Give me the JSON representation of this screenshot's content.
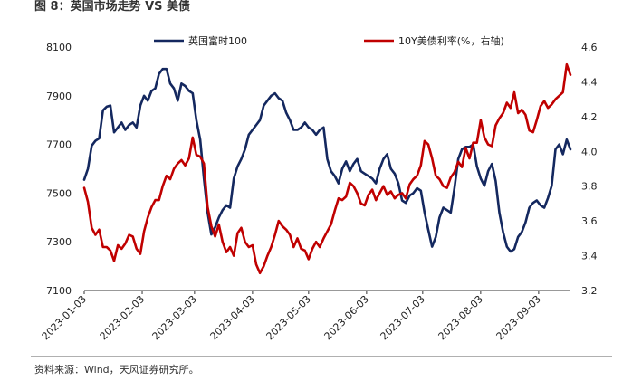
{
  "header": {
    "title": "图 8：英国市场走势 VS 美债"
  },
  "footer": {
    "source": "资料来源：Wind，天风证券研究所。"
  },
  "colors": {
    "ftse": "#14285f",
    "yield": "#c00000"
  },
  "chart_data": {
    "type": "line",
    "title": "",
    "xlabel": "",
    "ylabel": "",
    "x_tick_labels": [
      "2023-01-03",
      "2023-02-03",
      "2023-03-03",
      "2023-04-03",
      "2023-05-03",
      "2023-06-03",
      "2023-07-03",
      "2023-08-03",
      "2023-09-03"
    ],
    "x_range": [
      "2023-01-03",
      "2023-09-20"
    ],
    "legend_position": "top",
    "y_left": {
      "ticks": [
        7100,
        7300,
        7500,
        7700,
        7900,
        8100
      ],
      "range": [
        7100,
        8100
      ]
    },
    "y_right": {
      "ticks": [
        3.2,
        3.4,
        3.6,
        3.8,
        4.0,
        4.2,
        4.4,
        4.6
      ],
      "range": [
        3.2,
        4.6
      ]
    },
    "series": [
      {
        "name": "英国富时100",
        "axis": "left",
        "points": [
          [
            "2023-01-03",
            7555
          ],
          [
            "2023-01-05",
            7600
          ],
          [
            "2023-01-07",
            7695
          ],
          [
            "2023-01-09",
            7715
          ],
          [
            "2023-01-11",
            7725
          ],
          [
            "2023-01-13",
            7840
          ],
          [
            "2023-01-15",
            7855
          ],
          [
            "2023-01-17",
            7860
          ],
          [
            "2023-01-19",
            7750
          ],
          [
            "2023-01-21",
            7770
          ],
          [
            "2023-01-23",
            7790
          ],
          [
            "2023-01-25",
            7760
          ],
          [
            "2023-01-27",
            7780
          ],
          [
            "2023-01-29",
            7790
          ],
          [
            "2023-01-31",
            7770
          ],
          [
            "2023-02-02",
            7860
          ],
          [
            "2023-02-04",
            7900
          ],
          [
            "2023-02-06",
            7880
          ],
          [
            "2023-02-08",
            7920
          ],
          [
            "2023-02-10",
            7930
          ],
          [
            "2023-02-12",
            7990
          ],
          [
            "2023-02-14",
            8010
          ],
          [
            "2023-02-16",
            8010
          ],
          [
            "2023-02-18",
            7950
          ],
          [
            "2023-02-20",
            7930
          ],
          [
            "2023-02-22",
            7880
          ],
          [
            "2023-02-24",
            7950
          ],
          [
            "2023-02-26",
            7940
          ],
          [
            "2023-02-28",
            7920
          ],
          [
            "2023-03-02",
            7910
          ],
          [
            "2023-03-04",
            7800
          ],
          [
            "2023-03-06",
            7720
          ],
          [
            "2023-03-08",
            7560
          ],
          [
            "2023-03-10",
            7420
          ],
          [
            "2023-03-12",
            7330
          ],
          [
            "2023-03-14",
            7360
          ],
          [
            "2023-03-16",
            7400
          ],
          [
            "2023-03-18",
            7430
          ],
          [
            "2023-03-20",
            7450
          ],
          [
            "2023-03-22",
            7440
          ],
          [
            "2023-03-24",
            7560
          ],
          [
            "2023-03-26",
            7610
          ],
          [
            "2023-03-28",
            7640
          ],
          [
            "2023-03-30",
            7680
          ],
          [
            "2023-04-01",
            7740
          ],
          [
            "2023-04-03",
            7760
          ],
          [
            "2023-04-05",
            7780
          ],
          [
            "2023-04-07",
            7800
          ],
          [
            "2023-04-09",
            7860
          ],
          [
            "2023-04-11",
            7880
          ],
          [
            "2023-04-13",
            7900
          ],
          [
            "2023-04-15",
            7910
          ],
          [
            "2023-04-17",
            7890
          ],
          [
            "2023-04-19",
            7880
          ],
          [
            "2023-04-21",
            7830
          ],
          [
            "2023-04-23",
            7800
          ],
          [
            "2023-04-25",
            7760
          ],
          [
            "2023-04-27",
            7760
          ],
          [
            "2023-04-29",
            7770
          ],
          [
            "2023-05-01",
            7790
          ],
          [
            "2023-05-03",
            7770
          ],
          [
            "2023-05-05",
            7760
          ],
          [
            "2023-05-07",
            7740
          ],
          [
            "2023-05-09",
            7760
          ],
          [
            "2023-05-11",
            7770
          ],
          [
            "2023-05-13",
            7640
          ],
          [
            "2023-05-15",
            7590
          ],
          [
            "2023-05-17",
            7570
          ],
          [
            "2023-05-19",
            7540
          ],
          [
            "2023-05-21",
            7600
          ],
          [
            "2023-05-23",
            7630
          ],
          [
            "2023-05-25",
            7590
          ],
          [
            "2023-05-27",
            7620
          ],
          [
            "2023-05-29",
            7640
          ],
          [
            "2023-05-31",
            7590
          ],
          [
            "2023-06-02",
            7580
          ],
          [
            "2023-06-04",
            7570
          ],
          [
            "2023-06-06",
            7560
          ],
          [
            "2023-06-08",
            7540
          ],
          [
            "2023-06-10",
            7600
          ],
          [
            "2023-06-12",
            7640
          ],
          [
            "2023-06-14",
            7660
          ],
          [
            "2023-06-16",
            7600
          ],
          [
            "2023-06-18",
            7580
          ],
          [
            "2023-06-20",
            7540
          ],
          [
            "2023-06-22",
            7470
          ],
          [
            "2023-06-24",
            7460
          ],
          [
            "2023-06-26",
            7490
          ],
          [
            "2023-06-28",
            7500
          ],
          [
            "2023-06-30",
            7520
          ],
          [
            "2023-07-02",
            7510
          ],
          [
            "2023-07-04",
            7420
          ],
          [
            "2023-07-06",
            7350
          ],
          [
            "2023-07-08",
            7280
          ],
          [
            "2023-07-10",
            7320
          ],
          [
            "2023-07-12",
            7400
          ],
          [
            "2023-07-14",
            7440
          ],
          [
            "2023-07-16",
            7430
          ],
          [
            "2023-07-18",
            7420
          ],
          [
            "2023-07-20",
            7520
          ],
          [
            "2023-07-22",
            7640
          ],
          [
            "2023-07-24",
            7680
          ],
          [
            "2023-07-26",
            7690
          ],
          [
            "2023-07-28",
            7690
          ],
          [
            "2023-07-30",
            7700
          ],
          [
            "2023-08-01",
            7610
          ],
          [
            "2023-08-03",
            7560
          ],
          [
            "2023-08-05",
            7530
          ],
          [
            "2023-08-07",
            7590
          ],
          [
            "2023-08-09",
            7620
          ],
          [
            "2023-08-11",
            7550
          ],
          [
            "2023-08-13",
            7420
          ],
          [
            "2023-08-15",
            7340
          ],
          [
            "2023-08-17",
            7280
          ],
          [
            "2023-08-19",
            7260
          ],
          [
            "2023-08-21",
            7270
          ],
          [
            "2023-08-23",
            7320
          ],
          [
            "2023-08-25",
            7340
          ],
          [
            "2023-08-27",
            7380
          ],
          [
            "2023-08-29",
            7440
          ],
          [
            "2023-08-31",
            7460
          ],
          [
            "2023-09-02",
            7470
          ],
          [
            "2023-09-04",
            7450
          ],
          [
            "2023-09-06",
            7440
          ],
          [
            "2023-09-08",
            7480
          ],
          [
            "2023-09-10",
            7530
          ],
          [
            "2023-09-12",
            7680
          ],
          [
            "2023-09-14",
            7700
          ],
          [
            "2023-09-16",
            7660
          ],
          [
            "2023-09-18",
            7720
          ],
          [
            "2023-09-20",
            7680
          ]
        ]
      },
      {
        "name": "10Y美债利率(%，右轴)",
        "axis": "right",
        "points": [
          [
            "2023-01-03",
            3.79
          ],
          [
            "2023-01-05",
            3.71
          ],
          [
            "2023-01-07",
            3.56
          ],
          [
            "2023-01-09",
            3.52
          ],
          [
            "2023-01-11",
            3.55
          ],
          [
            "2023-01-13",
            3.45
          ],
          [
            "2023-01-15",
            3.45
          ],
          [
            "2023-01-17",
            3.43
          ],
          [
            "2023-01-19",
            3.37
          ],
          [
            "2023-01-21",
            3.46
          ],
          [
            "2023-01-23",
            3.44
          ],
          [
            "2023-01-25",
            3.47
          ],
          [
            "2023-01-27",
            3.52
          ],
          [
            "2023-01-29",
            3.51
          ],
          [
            "2023-01-31",
            3.44
          ],
          [
            "2023-02-02",
            3.41
          ],
          [
            "2023-02-04",
            3.54
          ],
          [
            "2023-02-06",
            3.62
          ],
          [
            "2023-02-08",
            3.68
          ],
          [
            "2023-02-10",
            3.72
          ],
          [
            "2023-02-12",
            3.72
          ],
          [
            "2023-02-14",
            3.8
          ],
          [
            "2023-02-16",
            3.86
          ],
          [
            "2023-02-18",
            3.84
          ],
          [
            "2023-02-20",
            3.9
          ],
          [
            "2023-02-22",
            3.93
          ],
          [
            "2023-02-24",
            3.95
          ],
          [
            "2023-02-26",
            3.92
          ],
          [
            "2023-02-28",
            3.96
          ],
          [
            "2023-03-02",
            4.08
          ],
          [
            "2023-03-04",
            3.98
          ],
          [
            "2023-03-06",
            3.97
          ],
          [
            "2023-03-08",
            3.93
          ],
          [
            "2023-03-10",
            3.68
          ],
          [
            "2023-03-12",
            3.57
          ],
          [
            "2023-03-14",
            3.51
          ],
          [
            "2023-03-16",
            3.58
          ],
          [
            "2023-03-18",
            3.48
          ],
          [
            "2023-03-20",
            3.42
          ],
          [
            "2023-03-22",
            3.45
          ],
          [
            "2023-03-24",
            3.4
          ],
          [
            "2023-03-26",
            3.53
          ],
          [
            "2023-03-28",
            3.56
          ],
          [
            "2023-03-30",
            3.48
          ],
          [
            "2023-04-01",
            3.45
          ],
          [
            "2023-04-03",
            3.46
          ],
          [
            "2023-04-05",
            3.35
          ],
          [
            "2023-04-07",
            3.3
          ],
          [
            "2023-04-09",
            3.34
          ],
          [
            "2023-04-11",
            3.4
          ],
          [
            "2023-04-13",
            3.45
          ],
          [
            "2023-04-15",
            3.52
          ],
          [
            "2023-04-17",
            3.6
          ],
          [
            "2023-04-19",
            3.57
          ],
          [
            "2023-04-21",
            3.55
          ],
          [
            "2023-04-23",
            3.52
          ],
          [
            "2023-04-25",
            3.45
          ],
          [
            "2023-04-27",
            3.5
          ],
          [
            "2023-04-29",
            3.44
          ],
          [
            "2023-05-01",
            3.43
          ],
          [
            "2023-05-03",
            3.38
          ],
          [
            "2023-05-05",
            3.44
          ],
          [
            "2023-05-07",
            3.48
          ],
          [
            "2023-05-09",
            3.45
          ],
          [
            "2023-05-11",
            3.5
          ],
          [
            "2023-05-13",
            3.54
          ],
          [
            "2023-05-15",
            3.58
          ],
          [
            "2023-05-17",
            3.66
          ],
          [
            "2023-05-19",
            3.73
          ],
          [
            "2023-05-21",
            3.72
          ],
          [
            "2023-05-23",
            3.74
          ],
          [
            "2023-05-25",
            3.82
          ],
          [
            "2023-05-27",
            3.8
          ],
          [
            "2023-05-29",
            3.76
          ],
          [
            "2023-05-31",
            3.7
          ],
          [
            "2023-06-02",
            3.69
          ],
          [
            "2023-06-04",
            3.75
          ],
          [
            "2023-06-06",
            3.78
          ],
          [
            "2023-06-08",
            3.72
          ],
          [
            "2023-06-10",
            3.76
          ],
          [
            "2023-06-12",
            3.8
          ],
          [
            "2023-06-14",
            3.75
          ],
          [
            "2023-06-16",
            3.77
          ],
          [
            "2023-06-18",
            3.73
          ],
          [
            "2023-06-20",
            3.75
          ],
          [
            "2023-06-22",
            3.76
          ],
          [
            "2023-06-24",
            3.73
          ],
          [
            "2023-06-26",
            3.81
          ],
          [
            "2023-06-28",
            3.84
          ],
          [
            "2023-06-30",
            3.86
          ],
          [
            "2023-07-02",
            3.92
          ],
          [
            "2023-07-04",
            4.06
          ],
          [
            "2023-07-06",
            4.04
          ],
          [
            "2023-07-08",
            3.96
          ],
          [
            "2023-07-10",
            3.86
          ],
          [
            "2023-07-12",
            3.84
          ],
          [
            "2023-07-14",
            3.8
          ],
          [
            "2023-07-16",
            3.79
          ],
          [
            "2023-07-18",
            3.85
          ],
          [
            "2023-07-20",
            3.88
          ],
          [
            "2023-07-22",
            3.94
          ],
          [
            "2023-07-24",
            3.91
          ],
          [
            "2023-07-26",
            4.02
          ],
          [
            "2023-07-28",
            3.96
          ],
          [
            "2023-07-30",
            4.05
          ],
          [
            "2023-08-01",
            4.05
          ],
          [
            "2023-08-03",
            4.18
          ],
          [
            "2023-08-05",
            4.08
          ],
          [
            "2023-08-07",
            4.04
          ],
          [
            "2023-08-09",
            4.03
          ],
          [
            "2023-08-11",
            4.15
          ],
          [
            "2023-08-13",
            4.19
          ],
          [
            "2023-08-15",
            4.22
          ],
          [
            "2023-08-17",
            4.28
          ],
          [
            "2023-08-19",
            4.25
          ],
          [
            "2023-08-21",
            4.34
          ],
          [
            "2023-08-23",
            4.22
          ],
          [
            "2023-08-25",
            4.24
          ],
          [
            "2023-08-27",
            4.21
          ],
          [
            "2023-08-29",
            4.12
          ],
          [
            "2023-08-31",
            4.11
          ],
          [
            "2023-09-02",
            4.18
          ],
          [
            "2023-09-04",
            4.26
          ],
          [
            "2023-09-06",
            4.29
          ],
          [
            "2023-09-08",
            4.25
          ],
          [
            "2023-09-10",
            4.27
          ],
          [
            "2023-09-12",
            4.3
          ],
          [
            "2023-09-14",
            4.32
          ],
          [
            "2023-09-16",
            4.34
          ],
          [
            "2023-09-18",
            4.5
          ],
          [
            "2023-09-20",
            4.44
          ]
        ]
      }
    ]
  }
}
